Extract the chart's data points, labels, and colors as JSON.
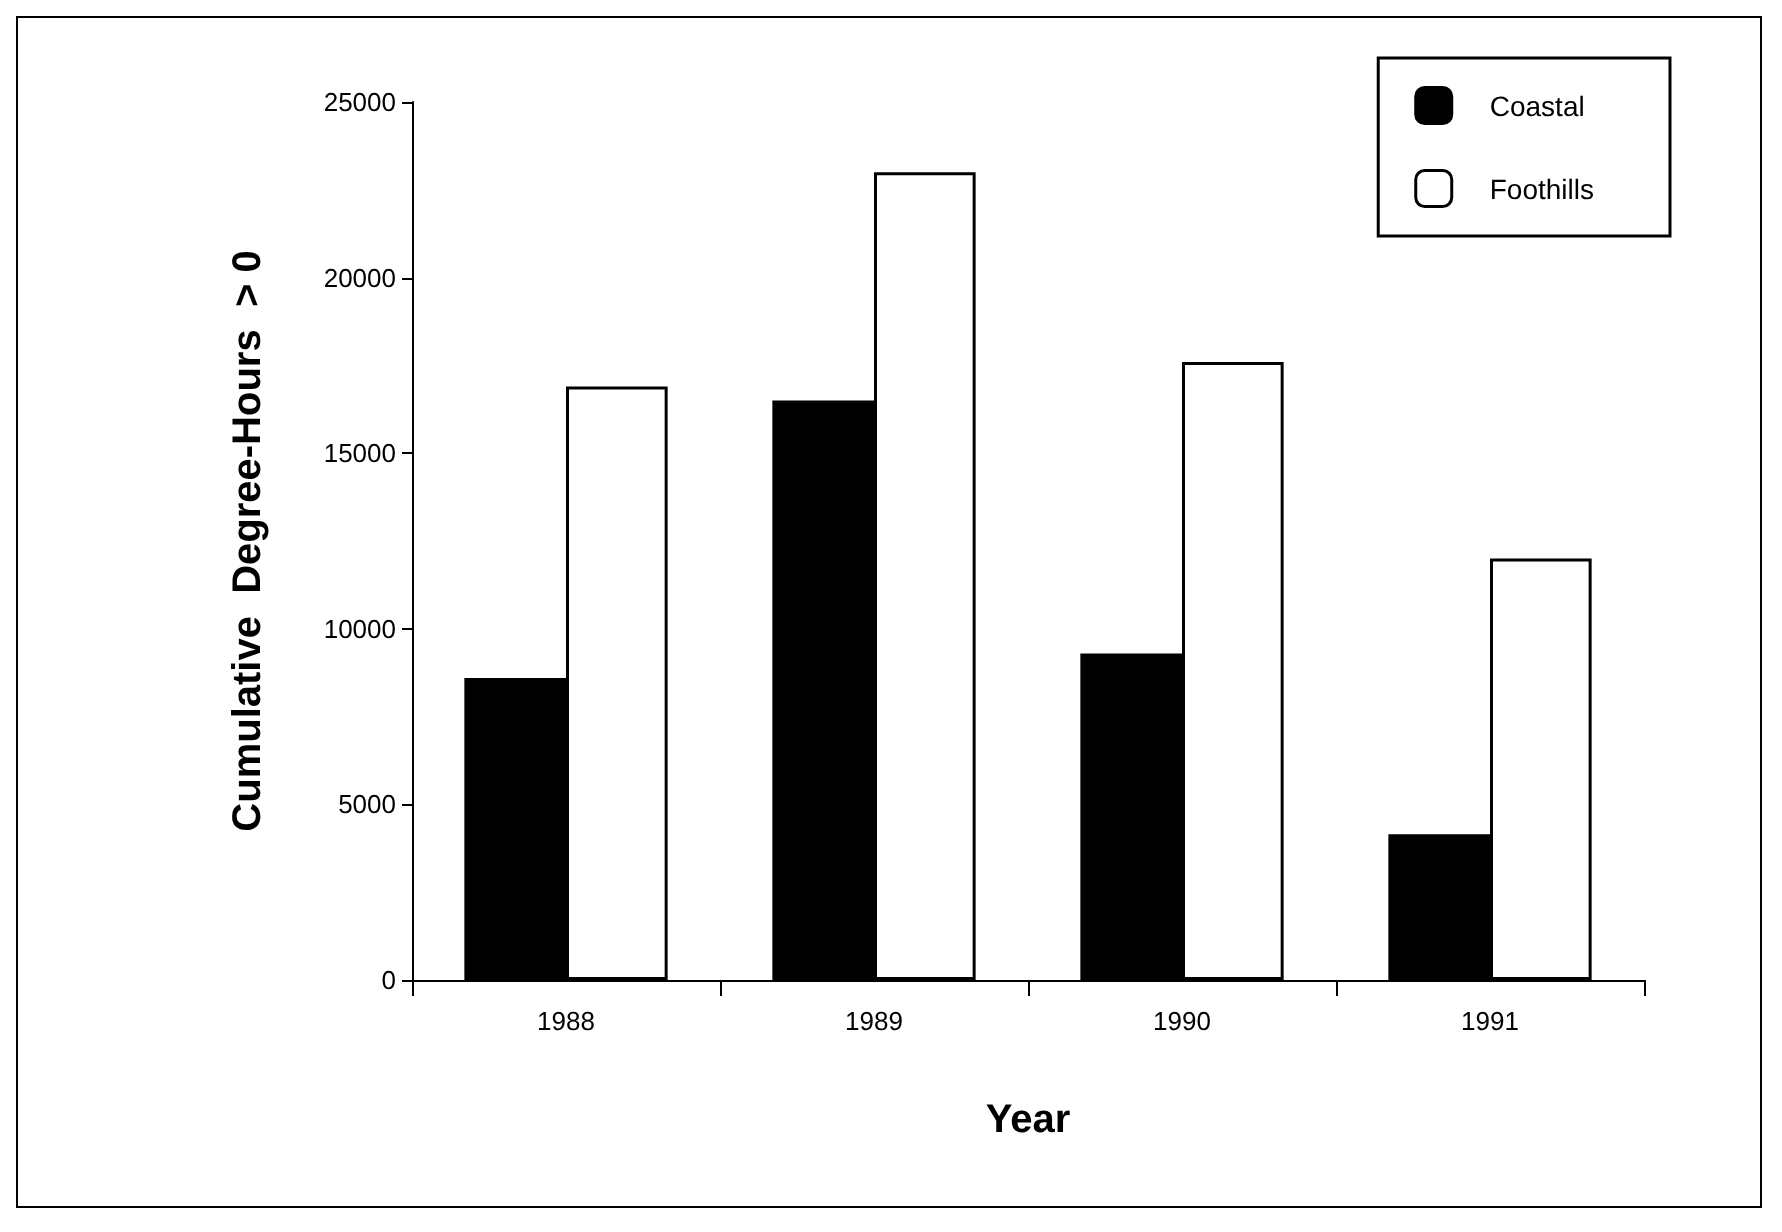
{
  "chart_data": {
    "type": "bar",
    "xlabel": "Year",
    "ylabel": "Cumulative  Degree-Hours  > 0",
    "categories": [
      "1988",
      "1989",
      "1990",
      "1991"
    ],
    "series": [
      {
        "name": "Coastal",
        "color": "#000000",
        "values": [
          8600,
          16500,
          9300,
          4150
        ]
      },
      {
        "name": "Foothills",
        "color": "#ffffff",
        "values": [
          16900,
          23000,
          17600,
          12000
        ]
      }
    ],
    "ylim": [
      0,
      25000
    ],
    "yticks": [
      0,
      5000,
      10000,
      15000,
      20000,
      25000
    ],
    "grid": false,
    "legend": "top right"
  }
}
